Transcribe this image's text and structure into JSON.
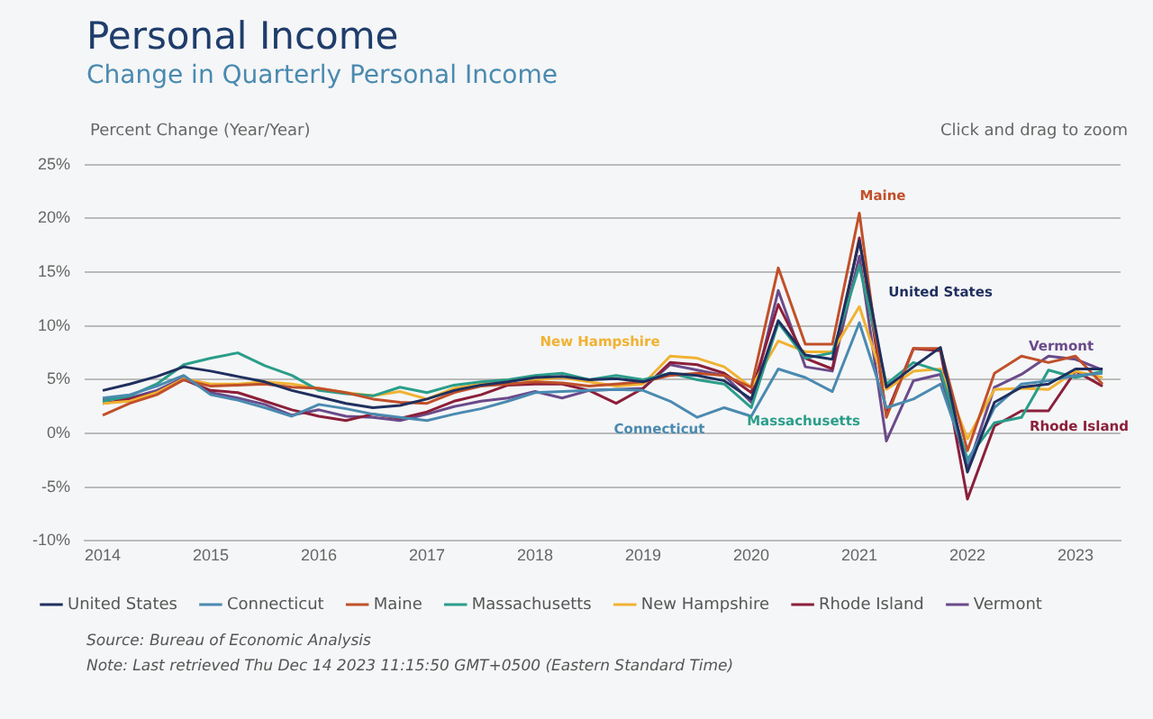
{
  "chart_data": {
    "type": "line",
    "title": "Personal Income",
    "subtitle": "Change in Quarterly Personal Income",
    "ylabel": "Percent Change (Year/Year)",
    "x": [
      "2014-01",
      "2014-04",
      "2014-07",
      "2014-10",
      "2015-01",
      "2015-04",
      "2015-07",
      "2015-10",
      "2016-01",
      "2016-04",
      "2016-07",
      "2016-10",
      "2017-01",
      "2017-04",
      "2017-07",
      "2017-10",
      "2018-01",
      "2018-04",
      "2018-07",
      "2018-10",
      "2019-01",
      "2019-04",
      "2019-07",
      "2019-10",
      "2020-01",
      "2020-04",
      "2020-07",
      "2020-10",
      "2021-01",
      "2021-04",
      "2021-07",
      "2021-10",
      "2022-01",
      "2022-04",
      "2022-07",
      "2022-10",
      "2023-01",
      "2023-04"
    ],
    "series": [
      {
        "name": "United States",
        "color": "#1f2f5e",
        "values": [
          4.0,
          4.6,
          5.3,
          6.2,
          5.8,
          5.3,
          4.8,
          4.0,
          3.4,
          2.8,
          2.4,
          2.6,
          3.2,
          4.0,
          4.5,
          4.8,
          5.2,
          5.3,
          5.0,
          5.1,
          4.8,
          5.6,
          5.4,
          4.9,
          3.2,
          10.5,
          7.3,
          6.9,
          17.9,
          4.3,
          6.2,
          8.0,
          -3.6,
          2.9,
          4.3,
          4.6,
          6.0,
          6.0
        ]
      },
      {
        "name": "Connecticut",
        "color": "#4a8ab0",
        "values": [
          3.3,
          3.6,
          4.4,
          5.4,
          3.6,
          3.1,
          2.4,
          1.6,
          2.7,
          2.3,
          1.8,
          1.5,
          1.2,
          1.8,
          2.3,
          3.0,
          3.8,
          3.9,
          4.0,
          4.1,
          4.0,
          3.0,
          1.5,
          2.4,
          1.6,
          6.0,
          5.2,
          3.9,
          10.3,
          2.4,
          3.2,
          4.6,
          -2.7,
          2.4,
          4.6,
          4.9,
          5.4,
          5.6
        ]
      },
      {
        "name": "Maine",
        "color": "#c0502a",
        "values": [
          1.7,
          2.8,
          3.6,
          5.0,
          4.4,
          4.5,
          4.6,
          4.3,
          4.2,
          3.8,
          3.2,
          2.9,
          2.8,
          3.8,
          4.4,
          4.6,
          4.8,
          4.7,
          4.4,
          4.6,
          4.8,
          5.4,
          5.6,
          5.4,
          4.3,
          15.4,
          8.3,
          8.3,
          20.5,
          1.5,
          7.9,
          7.9,
          -1.6,
          5.6,
          7.2,
          6.6,
          7.2,
          4.6
        ]
      },
      {
        "name": "Massachusetts",
        "color": "#2a9d8a",
        "values": [
          3.0,
          3.5,
          4.6,
          6.4,
          7.0,
          7.5,
          6.3,
          5.4,
          4.0,
          3.7,
          3.5,
          4.3,
          3.8,
          4.5,
          4.8,
          5.0,
          5.4,
          5.6,
          5.0,
          5.4,
          5.0,
          5.6,
          5.0,
          4.6,
          2.4,
          10.3,
          7.0,
          7.5,
          15.6,
          4.6,
          6.6,
          5.8,
          -2.4,
          1.0,
          1.5,
          5.9,
          5.2,
          5.8
        ]
      },
      {
        "name": "New Hampshire",
        "color": "#f0b232",
        "values": [
          2.8,
          3.0,
          3.8,
          5.1,
          4.6,
          4.6,
          4.8,
          4.6,
          4.2,
          3.8,
          3.5,
          3.9,
          3.2,
          4.2,
          4.6,
          5.0,
          5.0,
          5.2,
          4.8,
          4.4,
          4.6,
          7.2,
          7.0,
          6.2,
          4.3,
          8.6,
          7.6,
          7.6,
          11.8,
          4.1,
          5.8,
          6.0,
          -0.5,
          4.1,
          4.2,
          4.1,
          5.8,
          5.2
        ]
      },
      {
        "name": "Rhode Island",
        "color": "#8b1f3a",
        "values": [
          2.8,
          3.2,
          3.8,
          5.0,
          4.0,
          3.8,
          3.0,
          2.2,
          1.6,
          1.2,
          1.8,
          1.4,
          2.0,
          3.0,
          3.6,
          4.5,
          4.6,
          4.6,
          4.0,
          2.8,
          4.2,
          6.6,
          6.4,
          5.6,
          3.8,
          12.0,
          7.0,
          6.0,
          18.2,
          1.8,
          7.9,
          7.7,
          -6.1,
          0.7,
          2.1,
          2.1,
          5.8,
          4.4
        ]
      },
      {
        "name": "Vermont",
        "color": "#6a4a8a",
        "values": [
          3.2,
          3.3,
          4.0,
          5.2,
          3.8,
          3.3,
          2.7,
          1.7,
          2.2,
          1.6,
          1.5,
          1.2,
          1.8,
          2.5,
          3.0,
          3.3,
          3.9,
          3.3,
          4.0,
          4.1,
          4.2,
          6.4,
          5.9,
          5.4,
          2.9,
          13.3,
          6.2,
          5.8,
          16.5,
          -0.7,
          4.9,
          5.5,
          -3.3,
          4.3,
          5.5,
          7.2,
          6.9,
          5.9
        ]
      }
    ],
    "xlim": [
      "2013-11",
      "2023-06"
    ],
    "xticks": [
      "2014",
      "2015",
      "2016",
      "2017",
      "2018",
      "2019",
      "2020",
      "2021",
      "2022",
      "2023"
    ],
    "ylim": [
      -10,
      25
    ],
    "yticks": [
      {
        "value": -10,
        "label": "-10%"
      },
      {
        "value": -5,
        "label": "-5%"
      },
      {
        "value": 0,
        "label": "0%"
      },
      {
        "value": 5,
        "label": "5%"
      },
      {
        "value": 10,
        "label": "10%"
      },
      {
        "value": 15,
        "label": "15%"
      },
      {
        "value": 20,
        "label": "20%"
      },
      {
        "value": 25,
        "label": "25%"
      }
    ],
    "grid": "y",
    "legend": "bottom",
    "marker": "none",
    "line_style": "solid",
    "annotations": [
      "Click and drag to zoom",
      "Source: Bureau of Economic Analysis",
      "Note: Last retrieved Thu Dec 14 2023 11:15:50 GMT+0500 (Eastern Standard Time)"
    ]
  }
}
